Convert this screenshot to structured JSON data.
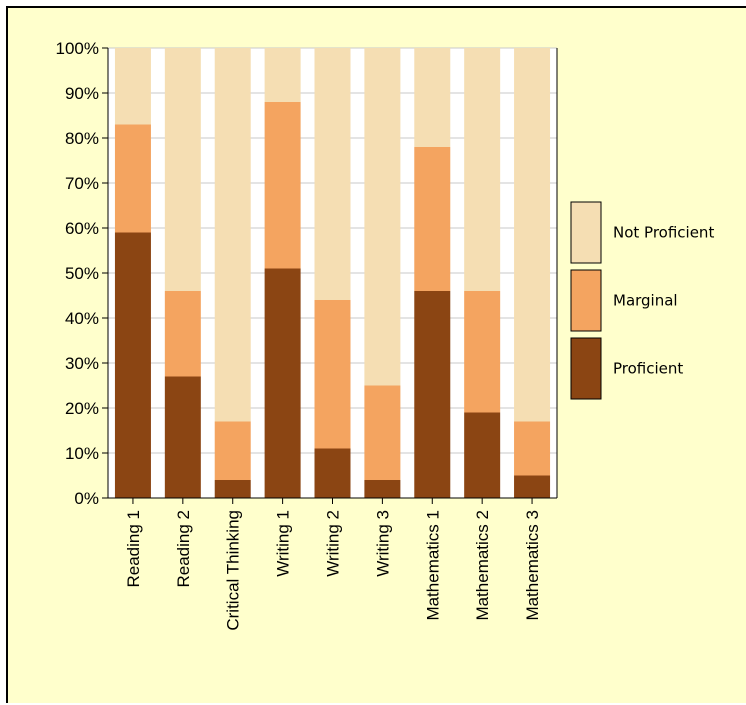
{
  "chart_data": {
    "type": "bar",
    "stacked": true,
    "percent": true,
    "categories": [
      "Reading 1",
      "Reading 2",
      "Critical Thinking",
      "Writing 1",
      "Writing 2",
      "Writing 3",
      "Mathematics 1",
      "Mathematics 2",
      "Mathematics 3"
    ],
    "series": [
      {
        "name": "Proficient",
        "color": "#8b4513",
        "values": [
          59,
          27,
          4,
          51,
          11,
          4,
          46,
          19,
          5
        ]
      },
      {
        "name": "Marginal",
        "color": "#f4a460",
        "values": [
          24,
          19,
          13,
          37,
          33,
          21,
          32,
          27,
          12
        ]
      },
      {
        "name": "Not Proficient",
        "color": "#f5deb3",
        "values": [
          17,
          54,
          83,
          12,
          56,
          75,
          22,
          54,
          83
        ]
      }
    ],
    "ylim": [
      0,
      100
    ],
    "yticks": [
      "0%",
      "10%",
      "20%",
      "30%",
      "40%",
      "50%",
      "60%",
      "70%",
      "80%",
      "90%",
      "100%"
    ],
    "grid": true,
    "legend_position": "right",
    "legend_order": [
      "Not Proficient",
      "Marginal",
      "Proficient"
    ],
    "title": "",
    "xlabel": "",
    "ylabel": ""
  }
}
